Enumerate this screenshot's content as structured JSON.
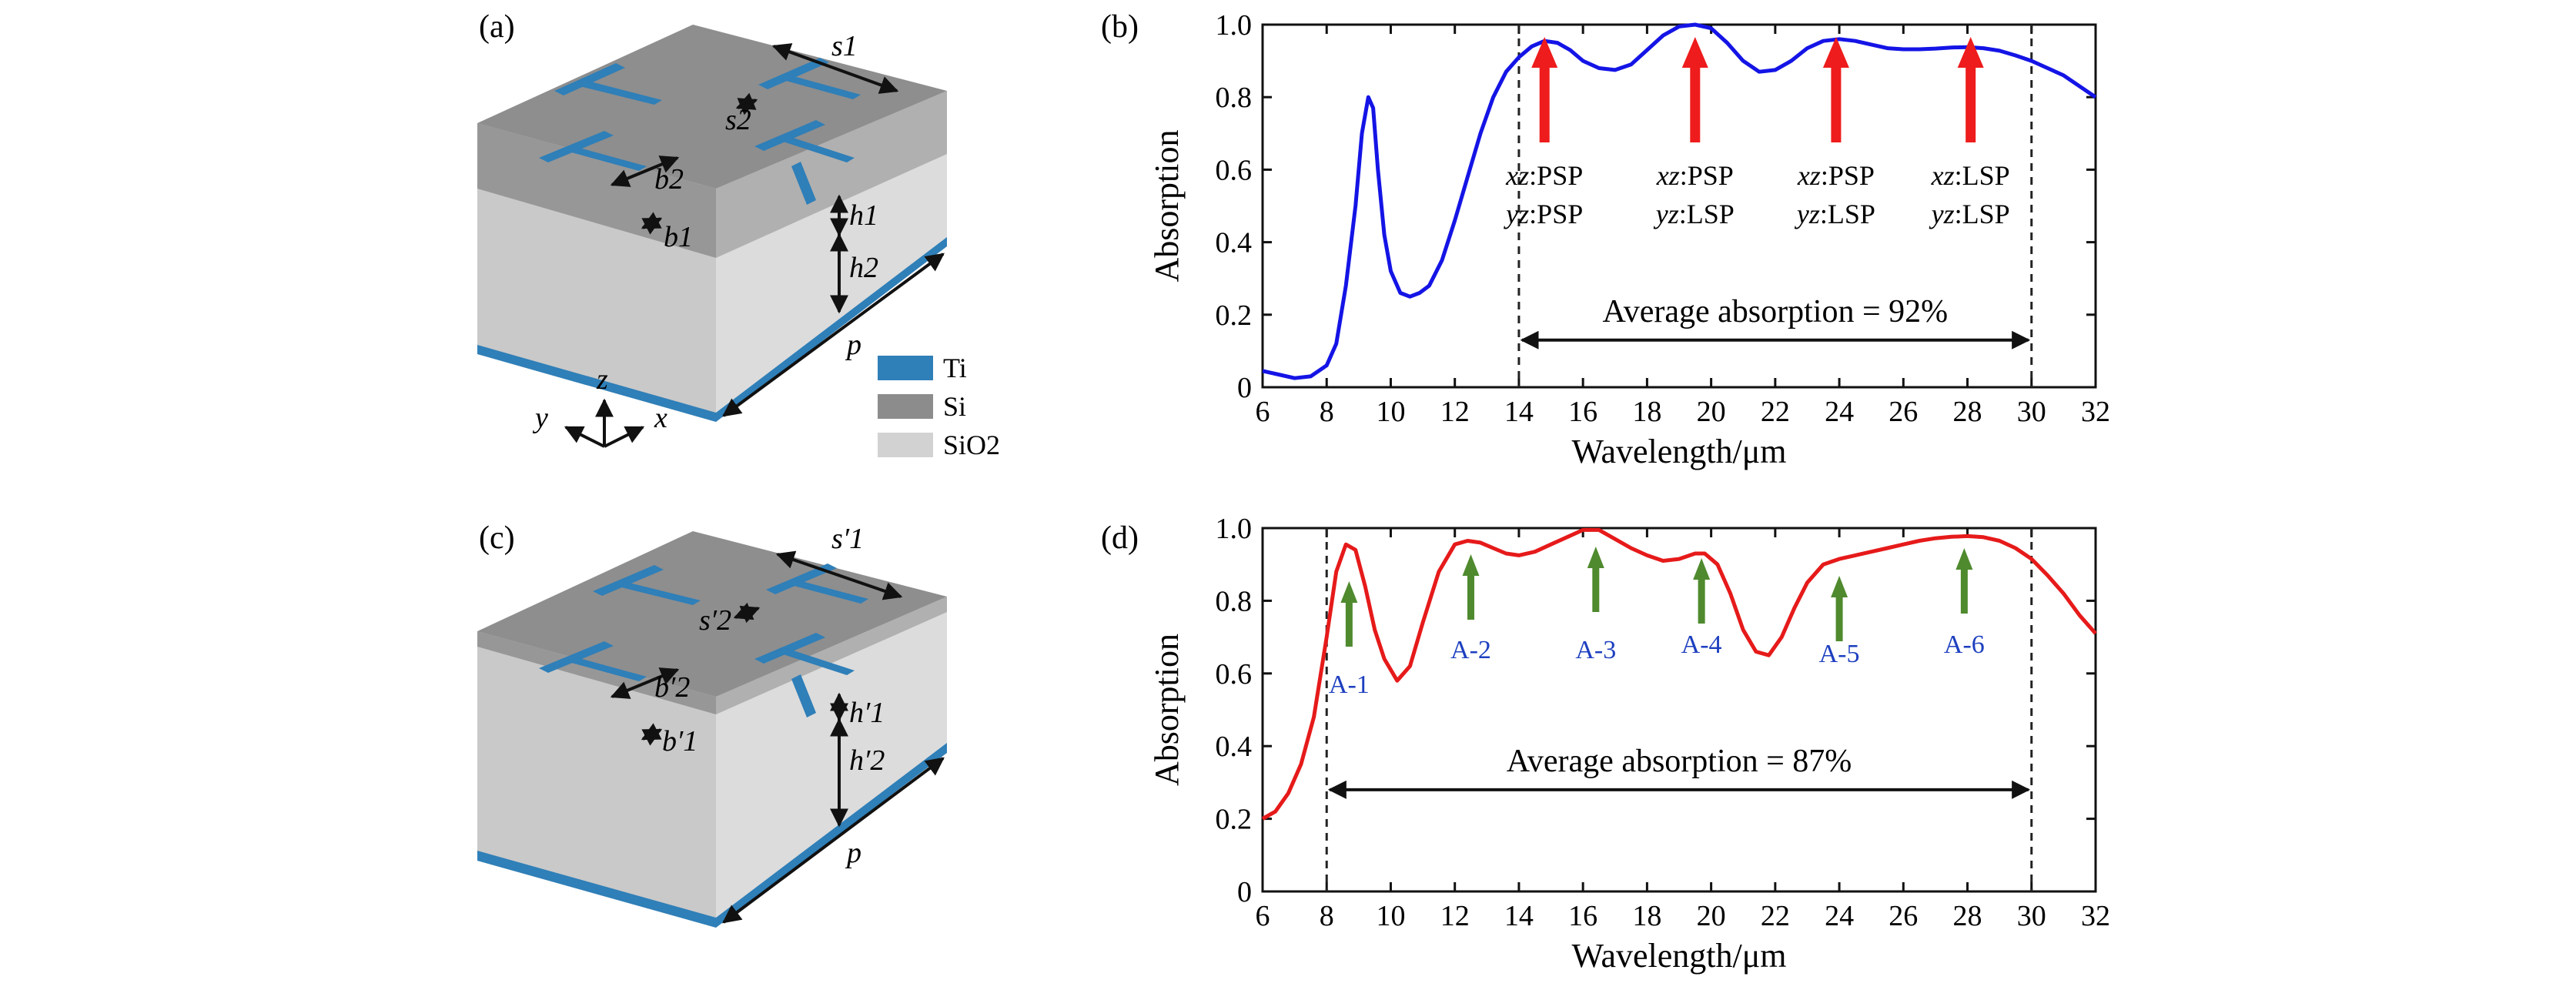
{
  "colors": {
    "ti": "#2f7fb8",
    "si_top": "#8c8c8c",
    "si_side": "#a5a5a5",
    "sio2_front": "#d2d2d2",
    "sio2_side": "#c2c2c2",
    "curve_b": "#1414e6",
    "curve_d": "#e61a1a",
    "arrow_b": "#ee1c1c",
    "arrow_d": "#4f8a2e",
    "label_d": "#1d3fbf"
  },
  "panels": {
    "a": {
      "label": "(a)",
      "dims": [
        "s1",
        "s2",
        "b2",
        "b1",
        "h1",
        "h2",
        "p"
      ],
      "axes": {
        "x": "x",
        "y": "y",
        "z": "z"
      }
    },
    "c": {
      "label": "(c)",
      "dims": [
        "s′1",
        "s′2",
        "b′2",
        "b′1",
        "h′1",
        "h′2",
        "p"
      ]
    }
  },
  "legend": [
    {
      "label": "Ti",
      "color": "#2f7fb8"
    },
    {
      "label": "Si",
      "color": "#8c8c8c"
    },
    {
      "label": "SiO2",
      "color": "#d2d2d2"
    }
  ],
  "chart_data": [
    {
      "panel": "(b)",
      "type": "line",
      "xlabel": "Wavelength/μm",
      "ylabel": "Absorption",
      "xlim": [
        6,
        32
      ],
      "ylim": [
        0,
        1.0
      ],
      "xticks": [
        6,
        8,
        10,
        12,
        14,
        16,
        18,
        20,
        22,
        24,
        26,
        28,
        30,
        32
      ],
      "yticks": [
        0,
        0.2,
        0.4,
        0.6,
        0.8,
        1.0
      ],
      "grid": false,
      "band_lines": [
        14,
        30
      ],
      "annotation": "Average absorption = 92%",
      "arrow_range": [
        14,
        30
      ],
      "series": [
        {
          "x": [
            6.0,
            6.5,
            7.0,
            7.5,
            8.0,
            8.3,
            8.6,
            8.9,
            9.1,
            9.3,
            9.45,
            9.6,
            9.8,
            10.0,
            10.3,
            10.6,
            10.9,
            11.2,
            11.6,
            12.0,
            12.4,
            12.8,
            13.2,
            13.6,
            14.0,
            14.4,
            14.8,
            15.2,
            15.6,
            16.0,
            16.5,
            17.0,
            17.5,
            18.0,
            18.5,
            19.0,
            19.5,
            20.0,
            20.5,
            21.0,
            21.5,
            22.0,
            22.5,
            23.0,
            23.5,
            24.0,
            24.5,
            25.0,
            25.5,
            26.0,
            26.5,
            27.0,
            27.5,
            28.0,
            28.5,
            29.0,
            29.5,
            30.0,
            30.5,
            31.0,
            31.5,
            32.0
          ],
          "y": [
            0.045,
            0.035,
            0.025,
            0.03,
            0.06,
            0.12,
            0.28,
            0.5,
            0.7,
            0.8,
            0.77,
            0.6,
            0.42,
            0.32,
            0.26,
            0.25,
            0.26,
            0.28,
            0.35,
            0.46,
            0.58,
            0.7,
            0.8,
            0.87,
            0.91,
            0.94,
            0.955,
            0.95,
            0.93,
            0.9,
            0.88,
            0.875,
            0.89,
            0.93,
            0.97,
            0.995,
            1.0,
            0.99,
            0.95,
            0.9,
            0.87,
            0.875,
            0.9,
            0.935,
            0.955,
            0.96,
            0.955,
            0.945,
            0.935,
            0.932,
            0.932,
            0.934,
            0.937,
            0.938,
            0.935,
            0.928,
            0.915,
            0.9,
            0.88,
            0.86,
            0.83,
            0.8
          ]
        }
      ],
      "arrows": [
        {
          "x": 14.8,
          "lines": [
            "xz:PSP",
            "yz:PSP"
          ]
        },
        {
          "x": 19.5,
          "lines": [
            "xz:PSP",
            "yz:LSP"
          ]
        },
        {
          "x": 23.9,
          "lines": [
            "xz:PSP",
            "yz:LSP"
          ]
        },
        {
          "x": 28.1,
          "lines": [
            "xz:LSP",
            "yz:LSP"
          ]
        }
      ]
    },
    {
      "panel": "(d)",
      "type": "line",
      "xlabel": "Wavelength/μm",
      "ylabel": "Absorption",
      "xlim": [
        6,
        32
      ],
      "ylim": [
        0,
        1.0
      ],
      "xticks": [
        6,
        8,
        10,
        12,
        14,
        16,
        18,
        20,
        22,
        24,
        26,
        28,
        30,
        32
      ],
      "yticks": [
        0,
        0.2,
        0.4,
        0.6,
        0.8,
        1.0
      ],
      "grid": false,
      "band_lines": [
        8,
        30
      ],
      "annotation": "Average absorption = 87%",
      "arrow_range": [
        8,
        30
      ],
      "series": [
        {
          "x": [
            6.0,
            6.4,
            6.8,
            7.2,
            7.6,
            8.0,
            8.3,
            8.6,
            8.9,
            9.2,
            9.5,
            9.8,
            10.2,
            10.6,
            11.0,
            11.5,
            12.0,
            12.4,
            12.8,
            13.2,
            13.6,
            14.0,
            14.5,
            15.0,
            15.5,
            16.0,
            16.5,
            17.0,
            17.5,
            18.0,
            18.5,
            19.0,
            19.5,
            19.8,
            20.2,
            20.6,
            21.0,
            21.4,
            21.8,
            22.2,
            22.6,
            23.0,
            23.5,
            24.0,
            24.5,
            25.0,
            25.5,
            26.0,
            26.5,
            27.0,
            27.5,
            28.0,
            28.5,
            29.0,
            29.5,
            30.0,
            30.5,
            31.0,
            31.5,
            32.0
          ],
          "y": [
            0.2,
            0.22,
            0.27,
            0.35,
            0.48,
            0.7,
            0.88,
            0.955,
            0.94,
            0.84,
            0.72,
            0.64,
            0.58,
            0.62,
            0.74,
            0.88,
            0.955,
            0.965,
            0.96,
            0.945,
            0.93,
            0.925,
            0.935,
            0.955,
            0.975,
            0.995,
            0.995,
            0.97,
            0.945,
            0.925,
            0.91,
            0.915,
            0.93,
            0.93,
            0.9,
            0.82,
            0.72,
            0.66,
            0.65,
            0.7,
            0.78,
            0.85,
            0.9,
            0.915,
            0.925,
            0.935,
            0.945,
            0.955,
            0.965,
            0.972,
            0.976,
            0.978,
            0.975,
            0.965,
            0.945,
            0.915,
            0.87,
            0.82,
            0.76,
            0.71
          ]
        }
      ],
      "arrows": [
        {
          "x": 8.7,
          "label": "A-1"
        },
        {
          "x": 12.5,
          "label": "A-2"
        },
        {
          "x": 16.4,
          "label": "A-3"
        },
        {
          "x": 19.7,
          "label": "A-4"
        },
        {
          "x": 24.0,
          "label": "A-5"
        },
        {
          "x": 27.9,
          "label": "A-6"
        }
      ]
    }
  ]
}
